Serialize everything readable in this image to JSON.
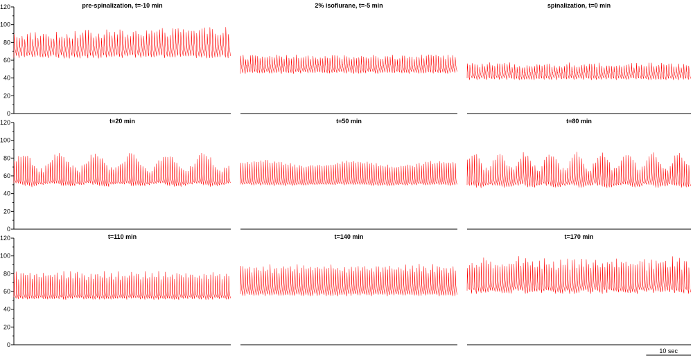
{
  "colors": {
    "trace": "#ff0000",
    "axis": "#000000"
  },
  "scale_bar": {
    "label": "10 sec",
    "seconds": 10
  },
  "chart_data": {
    "type": "line",
    "rows": 3,
    "cols": 3,
    "ylim": [
      0,
      120
    ],
    "yticks": [
      0,
      20,
      40,
      60,
      80,
      100,
      120
    ],
    "duration_seconds": 100,
    "grid": false,
    "panels": [
      {
        "title": "pre-spinalization, t=-10 min",
        "beats": 82,
        "systolic": 88,
        "diastolic": 64,
        "systolic_drift": 6,
        "notch": 0,
        "period_beats": 0,
        "mod": 0,
        "jitter": 5
      },
      {
        "title": "2% isoflurane, t=-5 min",
        "beats": 90,
        "systolic": 64,
        "diastolic": 46,
        "systolic_drift": 0,
        "notch": 0,
        "period_beats": 0,
        "mod": 0,
        "jitter": 3
      },
      {
        "title": "spinalization, t=0 min",
        "beats": 90,
        "systolic": 55,
        "diastolic": 39,
        "systolic_drift": 0,
        "notch": 0,
        "period_beats": 0,
        "mod": 0,
        "jitter": 3
      },
      {
        "title": "t=20 min",
        "beats": 96,
        "systolic": 73,
        "diastolic": 50,
        "systolic_drift": 0,
        "notch": 55,
        "period_beats": 16,
        "mod": 18,
        "jitter": 3
      },
      {
        "title": "t=50 min",
        "beats": 96,
        "systolic": 73,
        "diastolic": 50,
        "systolic_drift": 0,
        "notch": 53,
        "period_beats": 40,
        "mod": 6,
        "jitter": 2
      },
      {
        "title": "t=80 min",
        "beats": 96,
        "systolic": 74,
        "diastolic": 49,
        "systolic_drift": 0,
        "notch": 55,
        "period_beats": 11,
        "mod": 18,
        "jitter": 3
      },
      {
        "title": "t=110 min",
        "beats": 96,
        "systolic": 78,
        "diastolic": 52,
        "systolic_drift": 0,
        "notch": 57,
        "period_beats": 3,
        "mod": 5,
        "jitter": 3
      },
      {
        "title": "t=140 min",
        "beats": 96,
        "systolic": 86,
        "diastolic": 56,
        "systolic_drift": 0,
        "notch": 63,
        "period_beats": 3,
        "mod": 6,
        "jitter": 3
      },
      {
        "title": "t=170 min",
        "beats": 96,
        "systolic": 92,
        "diastolic": 60,
        "systolic_drift": 0,
        "notch": 67,
        "period_beats": 3,
        "mod": 6,
        "jitter": 6
      }
    ]
  }
}
